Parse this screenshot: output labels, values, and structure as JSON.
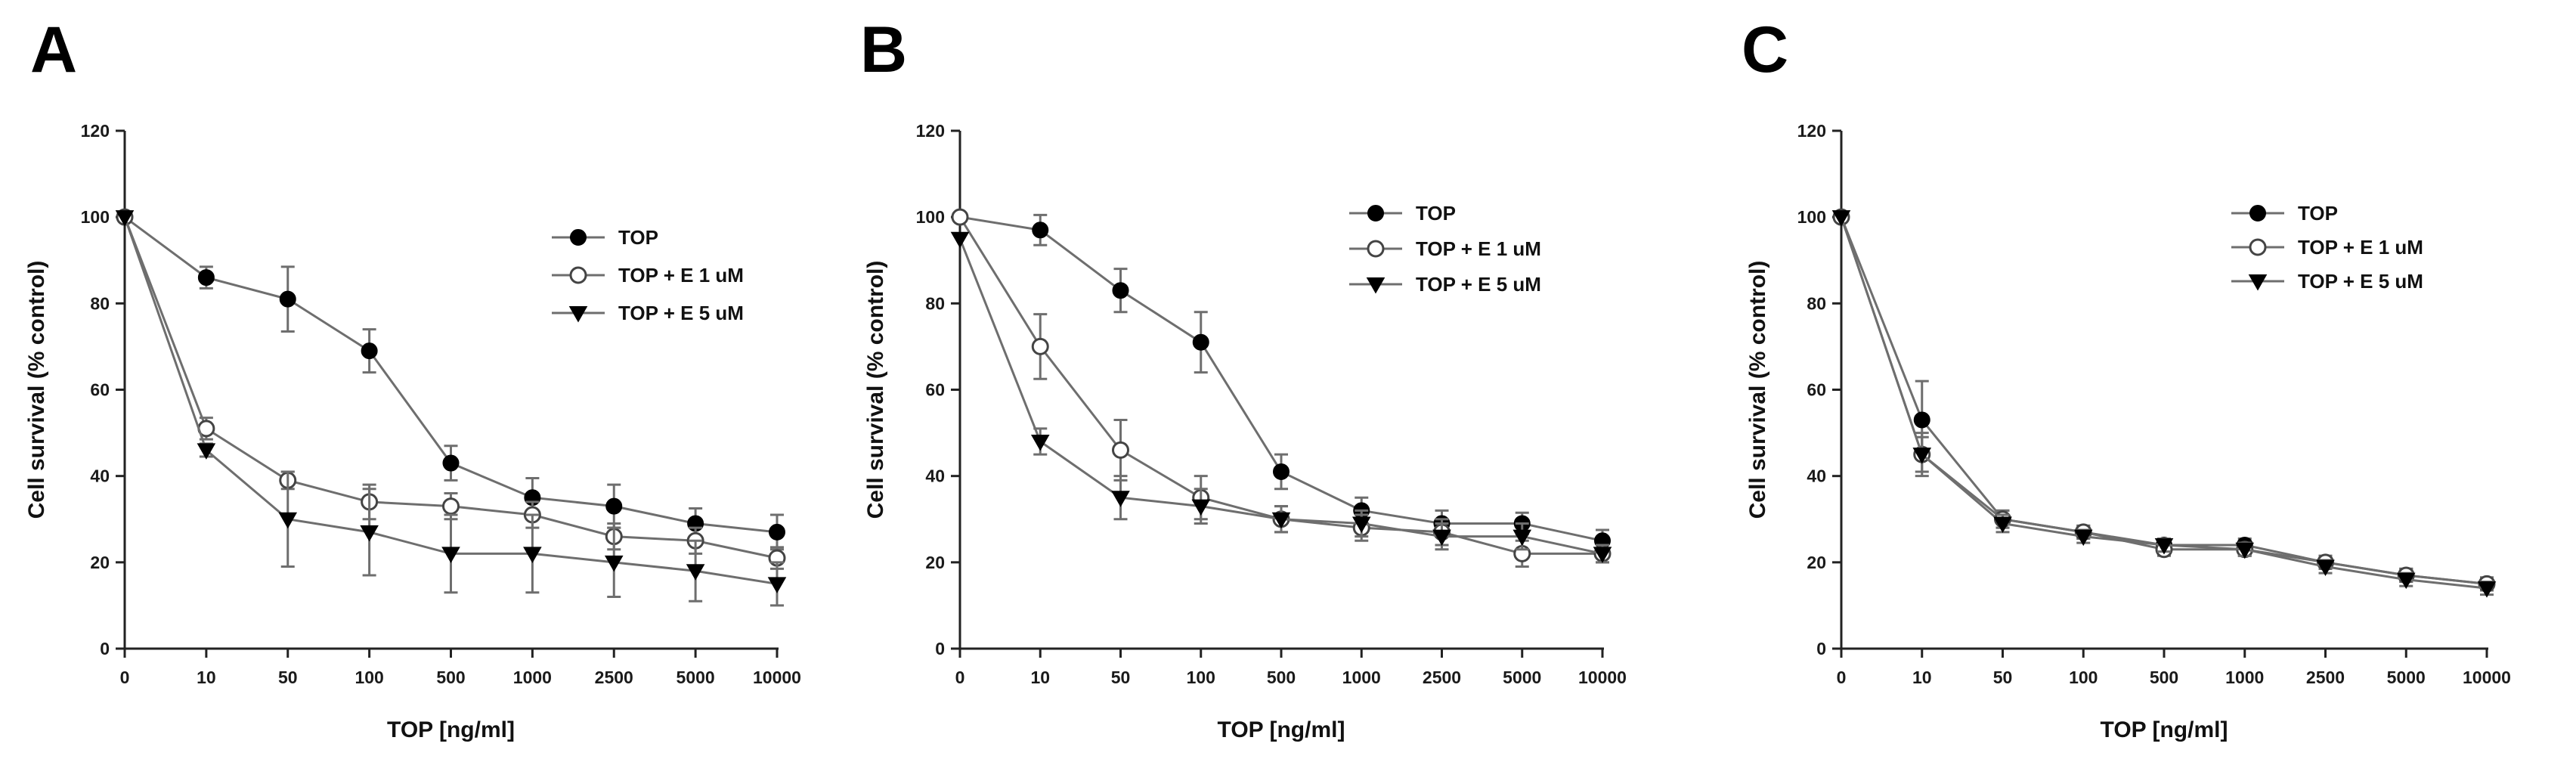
{
  "figure": {
    "xlabel": "TOP [ng/ml]",
    "ylabel": "Cell survival (% control)",
    "line_color": "#6e6e6e",
    "marker_color": "#000000"
  },
  "chart_data": [
    {
      "type": "line",
      "panel": "A",
      "categories": [
        "0",
        "10",
        "50",
        "100",
        "500",
        "1000",
        "2500",
        "5000",
        "10000"
      ],
      "xlabel": "TOP [ng/ml]",
      "ylabel": "Cell survival (% control)",
      "ylim": [
        0,
        120
      ],
      "yticks": [
        0,
        20,
        40,
        60,
        80,
        100,
        120
      ],
      "legend": "right",
      "series": [
        {
          "name": "TOP",
          "marker": "filled-circle",
          "values": [
            100,
            86,
            81,
            69,
            43,
            35,
            33,
            29,
            27
          ],
          "errors": [
            0,
            2.5,
            7.5,
            5,
            4,
            4.5,
            5,
            3.5,
            4
          ]
        },
        {
          "name": "TOP + E 1 uM",
          "marker": "open-circle",
          "values": [
            100,
            51,
            39,
            34,
            33,
            31,
            26,
            25,
            21
          ],
          "errors": [
            0,
            2.5,
            2,
            4,
            3,
            3,
            3,
            3,
            2.5
          ]
        },
        {
          "name": "TOP + E 5 uM",
          "marker": "filled-triangle-down",
          "values": [
            100,
            46,
            30,
            27,
            22,
            22,
            20,
            18,
            15
          ],
          "errors": [
            0,
            1.5,
            11,
            10,
            9,
            9,
            8,
            7,
            5
          ]
        }
      ]
    },
    {
      "type": "line",
      "panel": "B",
      "categories": [
        "0",
        "10",
        "50",
        "100",
        "500",
        "1000",
        "2500",
        "5000",
        "10000"
      ],
      "xlabel": "TOP [ng/ml]",
      "ylabel": "Cell survival (% control)",
      "ylim": [
        0,
        120
      ],
      "yticks": [
        0,
        20,
        40,
        60,
        80,
        100,
        120
      ],
      "legend": "right",
      "series": [
        {
          "name": "TOP",
          "marker": "filled-circle",
          "values": [
            100,
            97,
            83,
            71,
            41,
            32,
            29,
            29,
            25
          ],
          "errors": [
            0,
            3.5,
            5,
            7,
            4,
            3,
            3,
            2.5,
            2.5
          ]
        },
        {
          "name": "TOP + E 1 uM",
          "marker": "open-circle",
          "values": [
            100,
            70,
            46,
            35,
            30,
            28,
            27,
            22,
            22
          ],
          "errors": [
            0,
            7.5,
            7,
            5,
            3,
            3,
            3,
            3,
            2
          ]
        },
        {
          "name": "TOP + E 5 uM",
          "marker": "filled-triangle-down",
          "values": [
            95,
            48,
            35,
            33,
            30,
            29,
            26,
            26,
            22
          ],
          "errors": [
            0,
            3,
            5,
            4,
            3,
            3,
            3,
            3,
            2
          ]
        }
      ]
    },
    {
      "type": "line",
      "panel": "C",
      "categories": [
        "0",
        "10",
        "50",
        "100",
        "500",
        "1000",
        "2500",
        "5000",
        "10000"
      ],
      "xlabel": "TOP [ng/ml]",
      "ylabel": "Cell survival (% control)",
      "ylim": [
        0,
        120
      ],
      "yticks": [
        0,
        20,
        40,
        60,
        80,
        100,
        120
      ],
      "legend": "right",
      "series": [
        {
          "name": "TOP",
          "marker": "filled-circle",
          "values": [
            100,
            53,
            30,
            27,
            24,
            24,
            20,
            17,
            15
          ],
          "errors": [
            0,
            9,
            2,
            1.5,
            1.5,
            1.5,
            1.5,
            1.5,
            1.5
          ]
        },
        {
          "name": "TOP + E 1 uM",
          "marker": "open-circle",
          "values": [
            100,
            45,
            30,
            27,
            23,
            23,
            20,
            17,
            15
          ],
          "errors": [
            0,
            5,
            2,
            1.5,
            1.5,
            1.5,
            1.5,
            1.5,
            1.5
          ]
        },
        {
          "name": "TOP + E 5 uM",
          "marker": "filled-triangle-down",
          "values": [
            100,
            45,
            29,
            26,
            24,
            23,
            19,
            16,
            14
          ],
          "errors": [
            0,
            4,
            2,
            1.5,
            1.5,
            1.5,
            1.5,
            1.5,
            1.5
          ]
        }
      ]
    }
  ]
}
